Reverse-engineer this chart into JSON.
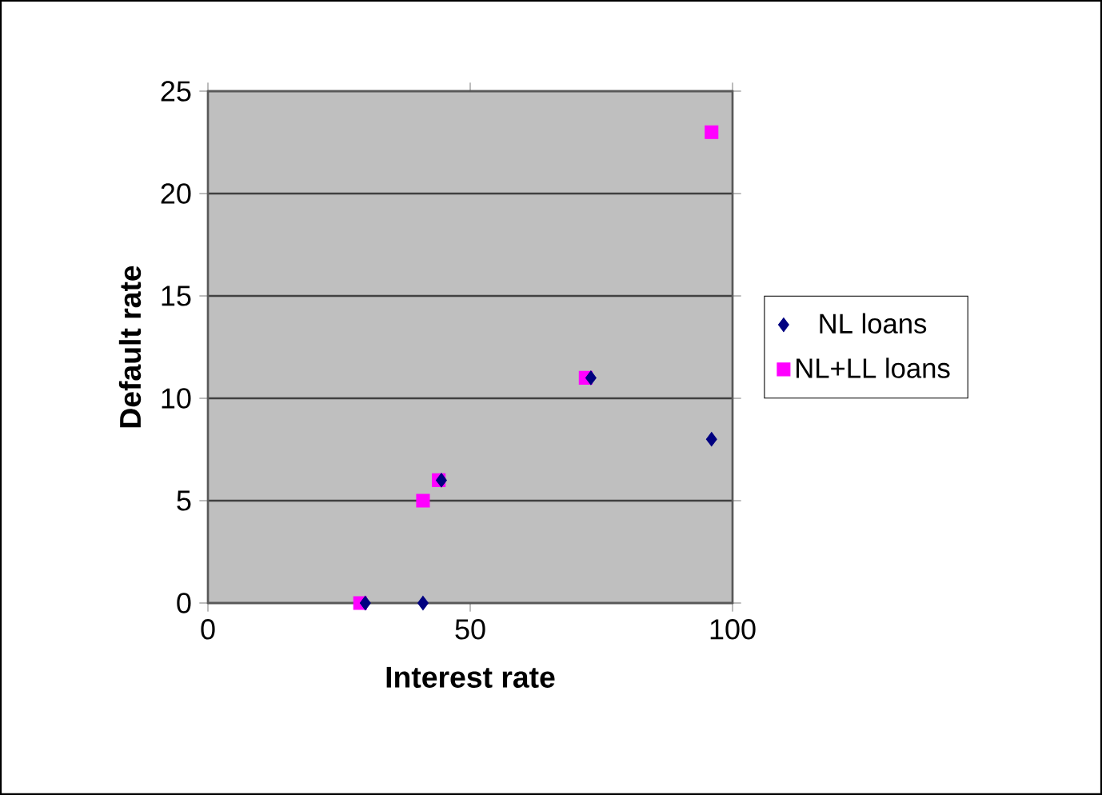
{
  "chart_data": {
    "type": "scatter",
    "xlabel": "Interest rate",
    "ylabel": "Default rate",
    "xlim": [
      0,
      100
    ],
    "ylim": [
      0,
      25
    ],
    "xticks": [
      0,
      50,
      100
    ],
    "yticks": [
      0,
      5,
      10,
      15,
      20,
      25
    ],
    "grid": "y",
    "legend": "right",
    "series": [
      {
        "name": "NL loans",
        "color": "#000080",
        "marker": "diamond",
        "x": [
          30,
          41,
          44.5,
          73,
          96
        ],
        "values": [
          0,
          0,
          6,
          11,
          8
        ]
      },
      {
        "name": "NL+LL loans",
        "color": "#ff00ff",
        "marker": "square",
        "x": [
          29,
          41,
          44,
          72,
          96
        ],
        "values": [
          0,
          5,
          6,
          11,
          23
        ]
      }
    ]
  }
}
